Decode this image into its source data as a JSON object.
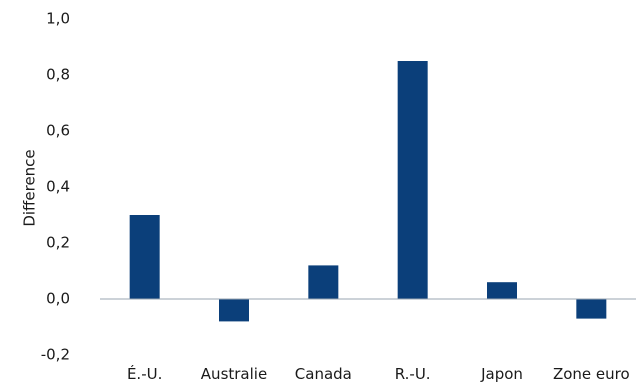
{
  "chart_data": {
    "type": "bar",
    "title": "",
    "xlabel": "",
    "ylabel": "Difference",
    "categories": [
      "É.-U.",
      "Australie",
      "Canada",
      "R.-U.",
      "Japon",
      "Zone euro"
    ],
    "values": [
      0.3,
      -0.08,
      0.12,
      0.85,
      0.06,
      -0.07
    ],
    "ylim": [
      -0.2,
      1.0
    ],
    "yticks": [
      -0.2,
      0.0,
      0.2,
      0.4,
      0.6,
      0.8,
      1.0
    ],
    "ytick_labels": [
      "-0,2",
      "0,0",
      "0,2",
      "0,4",
      "0,6",
      "0,8",
      "1,0"
    ],
    "grid": false,
    "legend": "none",
    "colors": {
      "bar": "#0b3f7a",
      "axis": "#9aa6b2",
      "text": "#1a1a1a"
    }
  }
}
